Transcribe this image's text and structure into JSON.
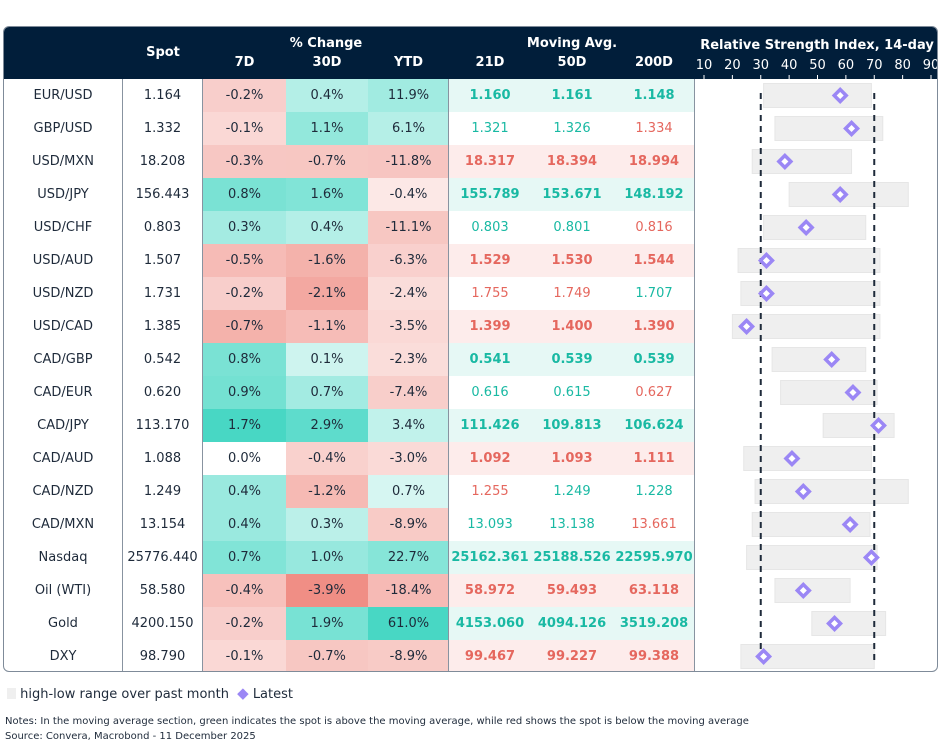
{
  "header": {
    "spot": "Spot",
    "pct_change": "% Change",
    "d7": "7D",
    "d30": "30D",
    "ytd": "YTD",
    "moving_avg": "Moving Avg.",
    "ma21": "21D",
    "ma50": "50D",
    "ma200": "200D",
    "rsi_title": "Relative Strength Index, 14-day"
  },
  "colors": {
    "header_bg": "#011e3a",
    "green_text": "#19b9a3",
    "red_text": "#e5675e",
    "green_cell": "#34d3be",
    "red_cell": "#ee8278",
    "diamond": "#9b87f5",
    "range_bar": "#efefef"
  },
  "chart_data": {
    "type": "table",
    "rsi_axis": {
      "ticks": [
        10,
        20,
        30,
        40,
        50,
        60,
        70,
        80,
        90
      ],
      "range": [
        10,
        90
      ],
      "reference_lines": [
        30,
        70
      ]
    },
    "rows": [
      {
        "name": "EUR/USD",
        "spot": "1.164",
        "d7": "-0.2%",
        "d30": "0.4%",
        "ytd": "11.9%",
        "ma21": "1.160",
        "ma50": "1.161",
        "ma200": "1.148",
        "rsi_low": 31,
        "rsi_high": 69,
        "rsi": 58
      },
      {
        "name": "GBP/USD",
        "spot": "1.332",
        "d7": "-0.1%",
        "d30": "1.1%",
        "ytd": "6.1%",
        "ma21": "1.321",
        "ma50": "1.326",
        "ma200": "1.334",
        "rsi_low": 35,
        "rsi_high": 73,
        "rsi": 62
      },
      {
        "name": "USD/MXN",
        "spot": "18.208",
        "d7": "-0.3%",
        "d30": "-0.7%",
        "ytd": "-11.8%",
        "ma21": "18.317",
        "ma50": "18.394",
        "ma200": "18.994",
        "rsi_low": 27,
        "rsi_high": 62,
        "rsi": 38.5
      },
      {
        "name": "USD/JPY",
        "spot": "156.443",
        "d7": "0.8%",
        "d30": "1.6%",
        "ytd": "-0.4%",
        "ma21": "155.789",
        "ma50": "153.671",
        "ma200": "148.192",
        "rsi_low": 40,
        "rsi_high": 82,
        "rsi": 58
      },
      {
        "name": "USD/CHF",
        "spot": "0.803",
        "d7": "0.3%",
        "d30": "0.4%",
        "ytd": "-11.1%",
        "ma21": "0.803",
        "ma50": "0.801",
        "ma200": "0.816",
        "rsi_low": 31,
        "rsi_high": 67,
        "rsi": 46
      },
      {
        "name": "USD/AUD",
        "spot": "1.507",
        "d7": "-0.5%",
        "d30": "-1.6%",
        "ytd": "-6.3%",
        "ma21": "1.529",
        "ma50": "1.530",
        "ma200": "1.544",
        "rsi_low": 22,
        "rsi_high": 72,
        "rsi": 32
      },
      {
        "name": "USD/NZD",
        "spot": "1.731",
        "d7": "-0.2%",
        "d30": "-2.1%",
        "ytd": "-2.4%",
        "ma21": "1.755",
        "ma50": "1.749",
        "ma200": "1.707",
        "rsi_low": 23,
        "rsi_high": 72,
        "rsi": 32
      },
      {
        "name": "USD/CAD",
        "spot": "1.385",
        "d7": "-0.7%",
        "d30": "-1.1%",
        "ytd": "-3.5%",
        "ma21": "1.399",
        "ma50": "1.400",
        "ma200": "1.390",
        "rsi_low": 20,
        "rsi_high": 72,
        "rsi": 25
      },
      {
        "name": "CAD/GBP",
        "spot": "0.542",
        "d7": "0.8%",
        "d30": "0.1%",
        "ytd": "-2.3%",
        "ma21": "0.541",
        "ma50": "0.539",
        "ma200": "0.539",
        "rsi_low": 34,
        "rsi_high": 67,
        "rsi": 55
      },
      {
        "name": "CAD/EUR",
        "spot": "0.620",
        "d7": "0.9%",
        "d30": "0.7%",
        "ytd": "-7.4%",
        "ma21": "0.616",
        "ma50": "0.615",
        "ma200": "0.627",
        "rsi_low": 37,
        "rsi_high": 71,
        "rsi": 62.5
      },
      {
        "name": "CAD/JPY",
        "spot": "113.170",
        "d7": "1.7%",
        "d30": "2.9%",
        "ytd": "3.4%",
        "ma21": "111.426",
        "ma50": "109.813",
        "ma200": "106.624",
        "rsi_low": 52,
        "rsi_high": 77,
        "rsi": 71.5
      },
      {
        "name": "CAD/AUD",
        "spot": "1.088",
        "d7": "0.0%",
        "d30": "-0.4%",
        "ytd": "-3.0%",
        "ma21": "1.092",
        "ma50": "1.093",
        "ma200": "1.111",
        "rsi_low": 24,
        "rsi_high": 69,
        "rsi": 41
      },
      {
        "name": "CAD/NZD",
        "spot": "1.249",
        "d7": "0.4%",
        "d30": "-1.2%",
        "ytd": "0.7%",
        "ma21": "1.255",
        "ma50": "1.249",
        "ma200": "1.228",
        "rsi_low": 28,
        "rsi_high": 82,
        "rsi": 45
      },
      {
        "name": "CAD/MXN",
        "spot": "13.154",
        "d7": "0.4%",
        "d30": "0.3%",
        "ytd": "-8.9%",
        "ma21": "13.093",
        "ma50": "13.138",
        "ma200": "13.661",
        "rsi_low": 27,
        "rsi_high": 68.5,
        "rsi": 61.5
      },
      {
        "name": "Nasdaq",
        "spot": "25776.440",
        "d7": "0.7%",
        "d30": "1.0%",
        "ytd": "22.7%",
        "ma21": "25162.361",
        "ma50": "25188.526",
        "ma200": "22595.970",
        "rsi_low": 25,
        "rsi_high": 71,
        "rsi": 69
      },
      {
        "name": "Oil (WTI)",
        "spot": "58.580",
        "d7": "-0.4%",
        "d30": "-3.9%",
        "ytd": "-18.4%",
        "ma21": "58.972",
        "ma50": "59.493",
        "ma200": "63.118",
        "rsi_low": 35,
        "rsi_high": 61.5,
        "rsi": 45
      },
      {
        "name": "Gold",
        "spot": "4200.150",
        "d7": "-0.2%",
        "d30": "1.9%",
        "ytd": "61.0%",
        "ma21": "4153.060",
        "ma50": "4094.126",
        "ma200": "3519.208",
        "rsi_low": 48,
        "rsi_high": 74,
        "rsi": 56
      },
      {
        "name": "DXY",
        "spot": "98.790",
        "d7": "-0.1%",
        "d30": "-0.7%",
        "ytd": "-8.9%",
        "ma21": "99.467",
        "ma50": "99.227",
        "ma200": "99.388",
        "rsi_low": 23,
        "rsi_high": 70,
        "rsi": 31
      }
    ]
  },
  "legend": {
    "range": "high-low range over past month",
    "latest": "Latest"
  },
  "notes": {
    "note": "Notes: In the moving average section, green indicates the spot is above the moving average, while red shows the spot is below the moving average",
    "source": "Source: Convera, Macrobond - 11 December 2025"
  }
}
